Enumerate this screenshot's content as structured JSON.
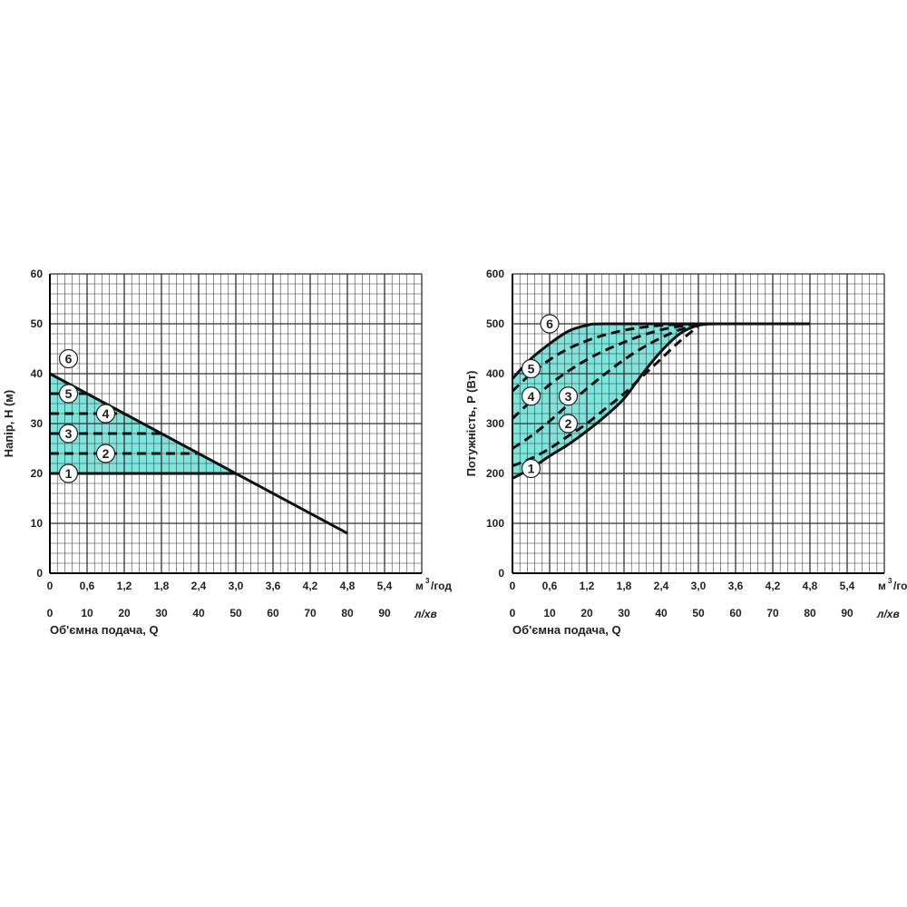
{
  "colors": {
    "fill": "#7fe5dc",
    "line": "#111111",
    "grid": "#333333"
  },
  "chart_data": [
    {
      "type": "line",
      "id": "head",
      "ylabel": "Напір, H (м)",
      "xlabel": "Об'ємна подача, Q",
      "x_unit_top": "м",
      "x_unit_top_sup": "3",
      "x_unit_top_tail": "/год",
      "x_unit_bottom": "л/хв",
      "xlim": [
        0,
        100
      ],
      "ylim": [
        0,
        60
      ],
      "y_ticks": [
        "0",
        "10",
        "20",
        "30",
        "40",
        "50",
        "60"
      ],
      "x_ticks_top": [
        "0",
        "0,6",
        "1,2",
        "1,8",
        "2,4",
        "3,0",
        "3,6",
        "4,2",
        "4,8",
        "5,4"
      ],
      "x_ticks_bottom": [
        "0",
        "10",
        "20",
        "30",
        "40",
        "50",
        "60",
        "70",
        "80",
        "90"
      ],
      "series": [
        {
          "name": "6",
          "style": "solid",
          "x": [
            0,
            80
          ],
          "y": [
            40,
            8
          ]
        },
        {
          "name": "5",
          "style": "dashed",
          "x": [
            0,
            10
          ],
          "y": [
            36,
            36
          ]
        },
        {
          "name": "4",
          "style": "dashed",
          "x": [
            0,
            20
          ],
          "y": [
            32,
            32
          ]
        },
        {
          "name": "3",
          "style": "dashed",
          "x": [
            0,
            30
          ],
          "y": [
            28,
            28
          ]
        },
        {
          "name": "2",
          "style": "dashed",
          "x": [
            0,
            40
          ],
          "y": [
            24,
            24
          ]
        },
        {
          "name": "1",
          "style": "solid",
          "x": [
            0,
            50
          ],
          "y": [
            20,
            20
          ]
        }
      ],
      "fill_region": {
        "x": [
          0,
          50,
          0
        ],
        "y": [
          40,
          20,
          20
        ]
      },
      "labels": [
        {
          "text": "6",
          "x": 5,
          "y": 43
        },
        {
          "text": "5",
          "x": 5,
          "y": 36
        },
        {
          "text": "4",
          "x": 15,
          "y": 32
        },
        {
          "text": "3",
          "x": 5,
          "y": 28
        },
        {
          "text": "2",
          "x": 15,
          "y": 24
        },
        {
          "text": "1",
          "x": 5,
          "y": 20
        }
      ]
    },
    {
      "type": "line",
      "id": "power",
      "ylabel": "Потужність, P (Вт)",
      "xlabel": "Об'ємна подача, Q",
      "x_unit_top": "м",
      "x_unit_top_sup": "3",
      "x_unit_top_tail": "/год",
      "x_unit_bottom": "л/хв",
      "xlim": [
        0,
        100
      ],
      "ylim": [
        0,
        600
      ],
      "y_ticks": [
        "0",
        "100",
        "200",
        "300",
        "400",
        "500",
        "600"
      ],
      "x_ticks_top": [
        "0",
        "0,6",
        "1,2",
        "1,8",
        "2,4",
        "3,0",
        "3,6",
        "4,2",
        "4,8",
        "5,4"
      ],
      "x_ticks_bottom": [
        "0",
        "10",
        "20",
        "30",
        "40",
        "50",
        "60",
        "70",
        "80",
        "90"
      ],
      "series": [
        {
          "name": "6",
          "style": "solid",
          "x": [
            0,
            5,
            10,
            15,
            20,
            25,
            50,
            80
          ],
          "y": [
            390,
            430,
            460,
            485,
            497,
            500,
            500,
            500
          ]
        },
        {
          "name": "5",
          "style": "dashed",
          "x": [
            0,
            5,
            10,
            15,
            20,
            25,
            30,
            35,
            40,
            45,
            50
          ],
          "y": [
            365,
            400,
            428,
            450,
            466,
            478,
            487,
            493,
            497,
            499,
            500
          ]
        },
        {
          "name": "4",
          "style": "dashed",
          "x": [
            0,
            5,
            10,
            15,
            20,
            25,
            30,
            35,
            40,
            45,
            50
          ],
          "y": [
            310,
            345,
            378,
            405,
            428,
            447,
            463,
            477,
            488,
            495,
            500
          ]
        },
        {
          "name": "3",
          "style": "dashed",
          "x": [
            0,
            5,
            10,
            15,
            20,
            25,
            30,
            35,
            40,
            45,
            50
          ],
          "y": [
            250,
            275,
            305,
            338,
            370,
            400,
            428,
            452,
            472,
            488,
            498
          ]
        },
        {
          "name": "2",
          "style": "dashed",
          "x": [
            0,
            5,
            10,
            15,
            20,
            25,
            30,
            35,
            40,
            45,
            50
          ],
          "y": [
            215,
            230,
            250,
            275,
            300,
            330,
            360,
            395,
            430,
            465,
            495
          ]
        },
        {
          "name": "1",
          "style": "solid",
          "x": [
            0,
            5,
            10,
            15,
            20,
            25,
            30,
            35,
            40,
            45,
            50,
            55
          ],
          "y": [
            190,
            210,
            235,
            258,
            285,
            315,
            350,
            400,
            445,
            480,
            497,
            500
          ]
        }
      ],
      "labels": [
        {
          "text": "6",
          "x": 10,
          "y": 500
        },
        {
          "text": "5",
          "x": 5,
          "y": 410
        },
        {
          "text": "4",
          "x": 5,
          "y": 355
        },
        {
          "text": "3",
          "x": 15,
          "y": 355
        },
        {
          "text": "2",
          "x": 15,
          "y": 300
        },
        {
          "text": "1",
          "x": 5,
          "y": 210
        }
      ]
    }
  ]
}
